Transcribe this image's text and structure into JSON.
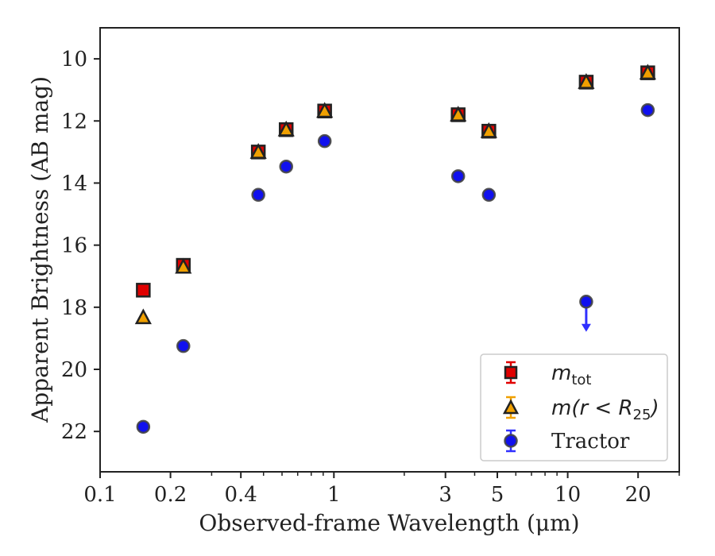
{
  "chart_data": {
    "type": "scatter",
    "title": "",
    "xlabel": "Observed-frame Wavelength (μm)",
    "ylabel": "Apparent Brightness (AB mag)",
    "xscale": "log",
    "xlim": [
      0.1,
      30
    ],
    "ylim": [
      23.3,
      9.0
    ],
    "y_inverted": true,
    "x_ticks": [
      0.1,
      0.2,
      0.4,
      1,
      3,
      5,
      10,
      20
    ],
    "x_tick_labels": [
      "0.1",
      "0.2",
      "0.4",
      "1",
      "3",
      "5",
      "10",
      "20"
    ],
    "y_ticks": [
      10,
      12,
      14,
      16,
      18,
      20,
      22
    ],
    "y_tick_labels": [
      "10",
      "12",
      "14",
      "16",
      "18",
      "20",
      "22"
    ],
    "grid": false,
    "legend_position": "lower-right",
    "series": [
      {
        "name": "m_tot",
        "marker": "square",
        "color": "#e00000",
        "x": [
          0.153,
          0.227,
          0.475,
          0.625,
          0.913,
          3.4,
          4.6,
          12.0,
          22.0
        ],
        "y": [
          17.45,
          16.65,
          13.0,
          12.28,
          11.68,
          11.8,
          12.33,
          10.75,
          10.45
        ]
      },
      {
        "name": "m(r<R25)",
        "marker": "triangle",
        "color": "#f0a000",
        "x": [
          0.153,
          0.227,
          0.475,
          0.625,
          0.913,
          3.4,
          4.6,
          12.0,
          22.0
        ],
        "y": [
          18.35,
          16.72,
          13.02,
          12.3,
          11.7,
          11.82,
          12.35,
          10.77,
          10.47
        ]
      },
      {
        "name": "Tractor",
        "marker": "circle",
        "color": "#1010ee",
        "x": [
          0.153,
          0.227,
          0.475,
          0.625,
          0.913,
          3.4,
          4.6,
          12.0,
          22.0
        ],
        "y": [
          21.85,
          19.25,
          14.38,
          13.47,
          12.65,
          13.78,
          14.38,
          17.82,
          11.65
        ],
        "upper_limits": [
          false,
          false,
          false,
          false,
          false,
          false,
          false,
          true,
          false
        ]
      }
    ]
  },
  "legend": {
    "items": [
      {
        "base": "m",
        "sub": "tot"
      },
      {
        "base": "m(r < R",
        "sub": "25",
        "tail": ")"
      },
      {
        "text": "Tractor"
      }
    ]
  },
  "colors": {
    "tot": "#e00000",
    "r25": "#f0a000",
    "tractor": "#1010ee",
    "edge": "#222222"
  }
}
